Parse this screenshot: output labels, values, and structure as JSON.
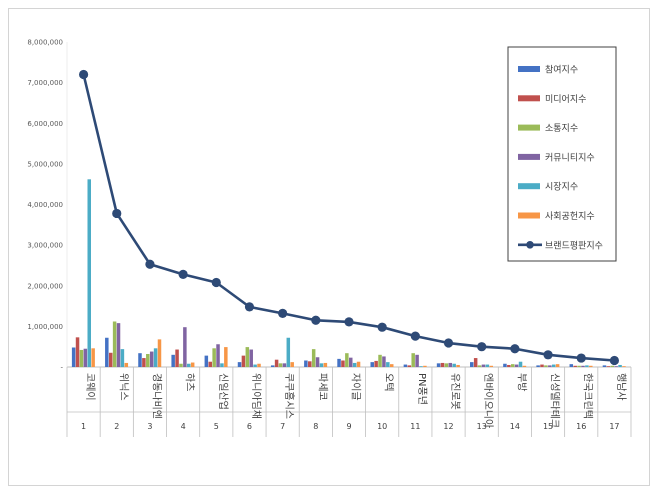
{
  "chart_data": {
    "type": "bar+line",
    "categories": [
      "코웨이",
      "위닉스",
      "경동나비엔",
      "하츠",
      "신일산업",
      "위니아딤채",
      "쿠쿠홈시스",
      "파세코",
      "자이글",
      "오텍",
      "PN풍년",
      "유진로봇",
      "엔바이오니아",
      "부방",
      "신성델타테크",
      "한국크린텍",
      "행남사"
    ],
    "ranks": [
      "1",
      "2",
      "3",
      "4",
      "5",
      "6",
      "7",
      "8",
      "9",
      "10",
      "11",
      "12",
      "13",
      "14",
      "15",
      "16",
      "17"
    ],
    "ylim": [
      0,
      8000000
    ],
    "ytick_labels": [
      "-",
      "1,000,000",
      "2,000,000",
      "3,000,000",
      "4,000,000",
      "5,000,000",
      "6,000,000",
      "7,000,000",
      "8,000,000"
    ],
    "series": [
      {
        "name": "참여지수",
        "color": "#4472c4",
        "values": [
          480000,
          720000,
          340000,
          300000,
          280000,
          120000,
          40000,
          160000,
          200000,
          120000,
          60000,
          90000,
          120000,
          80000,
          40000,
          70000,
          40000
        ]
      },
      {
        "name": "미디어지수",
        "color": "#c0504d",
        "values": [
          730000,
          350000,
          220000,
          430000,
          130000,
          280000,
          180000,
          140000,
          160000,
          150000,
          40000,
          100000,
          220000,
          50000,
          60000,
          30000,
          20000
        ]
      },
      {
        "name": "소통지수",
        "color": "#9bbb59",
        "values": [
          420000,
          1120000,
          320000,
          80000,
          460000,
          490000,
          90000,
          440000,
          340000,
          300000,
          340000,
          90000,
          40000,
          70000,
          40000,
          30000,
          30000
        ]
      },
      {
        "name": "커뮤니티지수",
        "color": "#8064a2",
        "values": [
          450000,
          1080000,
          380000,
          980000,
          560000,
          430000,
          90000,
          240000,
          230000,
          260000,
          300000,
          100000,
          60000,
          60000,
          40000,
          30000,
          20000
        ]
      },
      {
        "name": "시장지수",
        "color": "#4bacc6",
        "values": [
          4620000,
          440000,
          460000,
          80000,
          90000,
          60000,
          720000,
          90000,
          100000,
          120000,
          20000,
          80000,
          60000,
          130000,
          60000,
          40000,
          50000
        ]
      },
      {
        "name": "사회공헌지수",
        "color": "#f79646",
        "values": [
          460000,
          100000,
          680000,
          110000,
          490000,
          80000,
          120000,
          100000,
          130000,
          70000,
          30000,
          50000,
          30000,
          30000,
          70000,
          30000,
          20000
        ]
      },
      {
        "name": "브랜드평판지수",
        "color": "#2e4a76",
        "kind": "line",
        "values": [
          7200000,
          3780000,
          2530000,
          2280000,
          2080000,
          1480000,
          1320000,
          1150000,
          1110000,
          980000,
          760000,
          590000,
          500000,
          450000,
          300000,
          220000,
          160000
        ]
      }
    ]
  }
}
